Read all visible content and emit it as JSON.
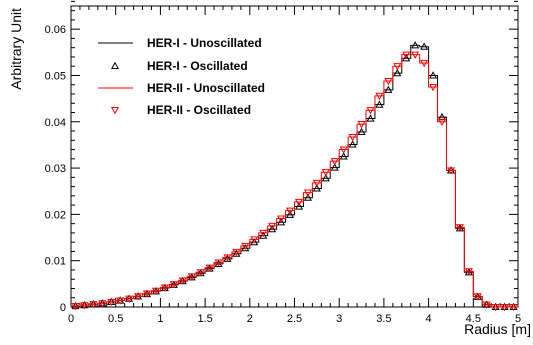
{
  "chart_data": {
    "type": "line",
    "xlabel": "Radius [m]",
    "ylabel": "Arbitrary Unit",
    "xlim": [
      0,
      5
    ],
    "ylim": [
      0,
      0.065
    ],
    "x_ticks": [
      "0",
      "0.5",
      "1",
      "1.5",
      "2",
      "2.5",
      "3",
      "3.5",
      "4",
      "4.5",
      "5"
    ],
    "y_ticks": [
      "0",
      "0.01",
      "0.02",
      "0.03",
      "0.04",
      "0.05",
      "0.06"
    ],
    "grid": false,
    "legend_position": "top-left",
    "bin_width": 0.1,
    "x": [
      0.05,
      0.15,
      0.25,
      0.35,
      0.45,
      0.55,
      0.65,
      0.75,
      0.85,
      0.95,
      1.05,
      1.15,
      1.25,
      1.35,
      1.45,
      1.55,
      1.65,
      1.75,
      1.85,
      1.95,
      2.05,
      2.15,
      2.25,
      2.35,
      2.45,
      2.55,
      2.65,
      2.75,
      2.85,
      2.95,
      3.05,
      3.15,
      3.25,
      3.35,
      3.45,
      3.55,
      3.65,
      3.75,
      3.85,
      3.95,
      4.05,
      4.15,
      4.25,
      4.35,
      4.45,
      4.55,
      4.65,
      4.75,
      4.85,
      4.95
    ],
    "series": [
      {
        "name": "HER-I - Unoscillated",
        "style": "line",
        "color": "#000000",
        "values": [
          0.0002,
          0.0004,
          0.0006,
          0.0008,
          0.0011,
          0.0014,
          0.0018,
          0.0023,
          0.0028,
          0.0034,
          0.0041,
          0.0048,
          0.0056,
          0.0064,
          0.0073,
          0.0083,
          0.0093,
          0.0104,
          0.0115,
          0.0127,
          0.014,
          0.0154,
          0.0168,
          0.0183,
          0.0199,
          0.0217,
          0.0236,
          0.0256,
          0.0278,
          0.0301,
          0.0325,
          0.0351,
          0.0378,
          0.0407,
          0.0437,
          0.0469,
          0.0505,
          0.0537,
          0.0565,
          0.0562,
          0.05,
          0.041,
          0.0295,
          0.017,
          0.0075,
          0.0022,
          0.0005,
          0,
          0,
          0
        ]
      },
      {
        "name": "HER-I - Oscillated",
        "style": "marker",
        "marker": "triangle-up",
        "color": "#000000",
        "values": [
          0.0002,
          0.0004,
          0.0006,
          0.0008,
          0.0011,
          0.0014,
          0.0018,
          0.0023,
          0.0028,
          0.0034,
          0.0041,
          0.0048,
          0.0056,
          0.0064,
          0.0073,
          0.0083,
          0.0093,
          0.0104,
          0.0115,
          0.0127,
          0.014,
          0.0154,
          0.0168,
          0.0183,
          0.0199,
          0.0217,
          0.0236,
          0.0256,
          0.0278,
          0.0301,
          0.0325,
          0.0351,
          0.0378,
          0.0407,
          0.0437,
          0.0469,
          0.0505,
          0.0537,
          0.0565,
          0.0562,
          0.05,
          0.041,
          0.0295,
          0.017,
          0.0075,
          0.0022,
          0.0005,
          0,
          0,
          0
        ]
      },
      {
        "name": "HER-II - Unoscillated",
        "style": "line",
        "color": "#ff0000",
        "values": [
          0.0002,
          0.0004,
          0.0006,
          0.0008,
          0.0011,
          0.0014,
          0.0018,
          0.0023,
          0.0029,
          0.0035,
          0.0042,
          0.0049,
          0.0057,
          0.0066,
          0.0075,
          0.0085,
          0.0096,
          0.0107,
          0.0119,
          0.0132,
          0.0146,
          0.016,
          0.0175,
          0.0191,
          0.0208,
          0.0227,
          0.0247,
          0.0268,
          0.0291,
          0.0315,
          0.034,
          0.0367,
          0.0395,
          0.0425,
          0.0456,
          0.0488,
          0.052,
          0.0545,
          0.0545,
          0.0527,
          0.0475,
          0.04,
          0.0295,
          0.0172,
          0.0077,
          0.0023,
          0.0005,
          0,
          0,
          0
        ]
      },
      {
        "name": "HER-II - Oscillated",
        "style": "marker",
        "marker": "triangle-down",
        "color": "#ff0000",
        "values": [
          0.0002,
          0.0004,
          0.0006,
          0.0008,
          0.0011,
          0.0014,
          0.0018,
          0.0023,
          0.0029,
          0.0035,
          0.0042,
          0.0049,
          0.0057,
          0.0066,
          0.0075,
          0.0085,
          0.0096,
          0.0107,
          0.0119,
          0.0132,
          0.0146,
          0.016,
          0.0175,
          0.0191,
          0.0208,
          0.0227,
          0.0247,
          0.0268,
          0.0291,
          0.0315,
          0.034,
          0.0367,
          0.0395,
          0.0425,
          0.0456,
          0.0488,
          0.052,
          0.0545,
          0.0545,
          0.0527,
          0.0475,
          0.04,
          0.0295,
          0.0172,
          0.0077,
          0.0023,
          0.0005,
          0,
          0,
          0
        ]
      }
    ]
  }
}
